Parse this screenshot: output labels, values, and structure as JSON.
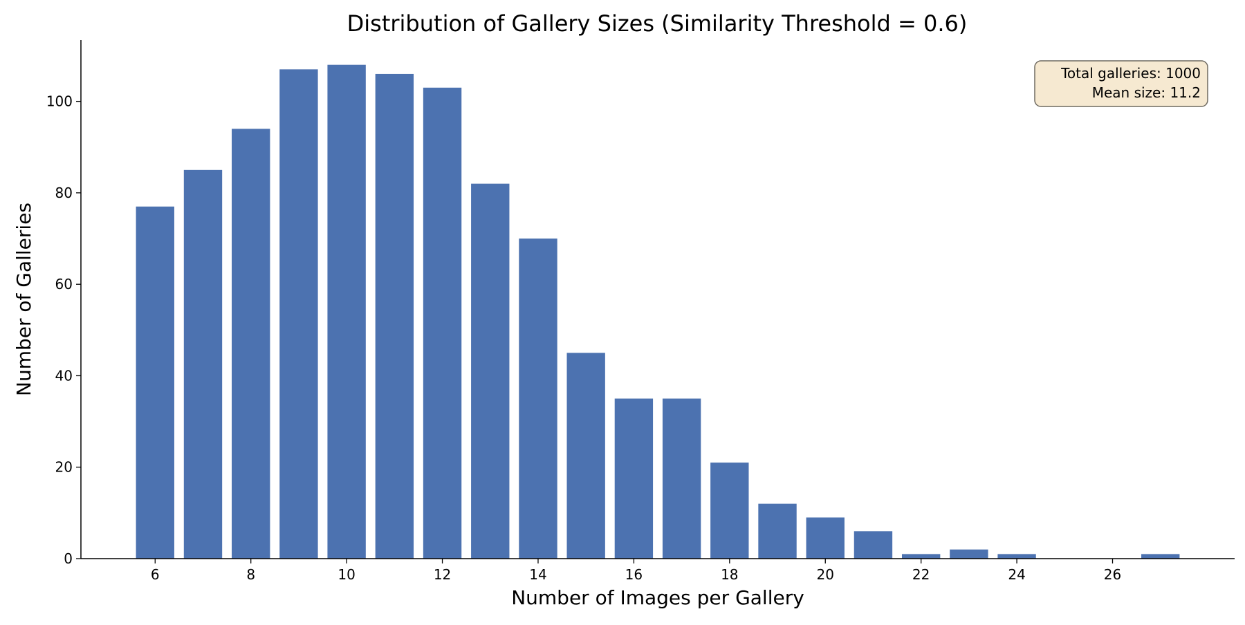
{
  "chart_data": {
    "type": "bar",
    "title": "Distribution of Gallery Sizes (Similarity Threshold = 0.6)",
    "xlabel": "Number of Images per Gallery",
    "ylabel": "Number of Galleries",
    "x": [
      6,
      7,
      8,
      9,
      10,
      11,
      12,
      13,
      14,
      15,
      16,
      17,
      18,
      19,
      20,
      21,
      22,
      23,
      24,
      27
    ],
    "values": [
      77,
      85,
      94,
      107,
      108,
      106,
      103,
      82,
      70,
      45,
      35,
      35,
      21,
      12,
      9,
      6,
      1,
      2,
      1,
      1
    ],
    "xlim": [
      4.45,
      28.55
    ],
    "ylim": [
      0,
      113.4
    ],
    "xticks": [
      6,
      8,
      10,
      12,
      14,
      16,
      18,
      20,
      22,
      24,
      26
    ],
    "yticks": [
      0,
      20,
      40,
      60,
      80,
      100
    ],
    "bar_width": 0.8,
    "bar_color": "#4c72b0",
    "grid": false,
    "annotation": {
      "lines": [
        "Total galleries: 1000",
        "Mean size: 11.2"
      ],
      "placement": "top-right",
      "box_color": "#f6e9d1"
    }
  }
}
